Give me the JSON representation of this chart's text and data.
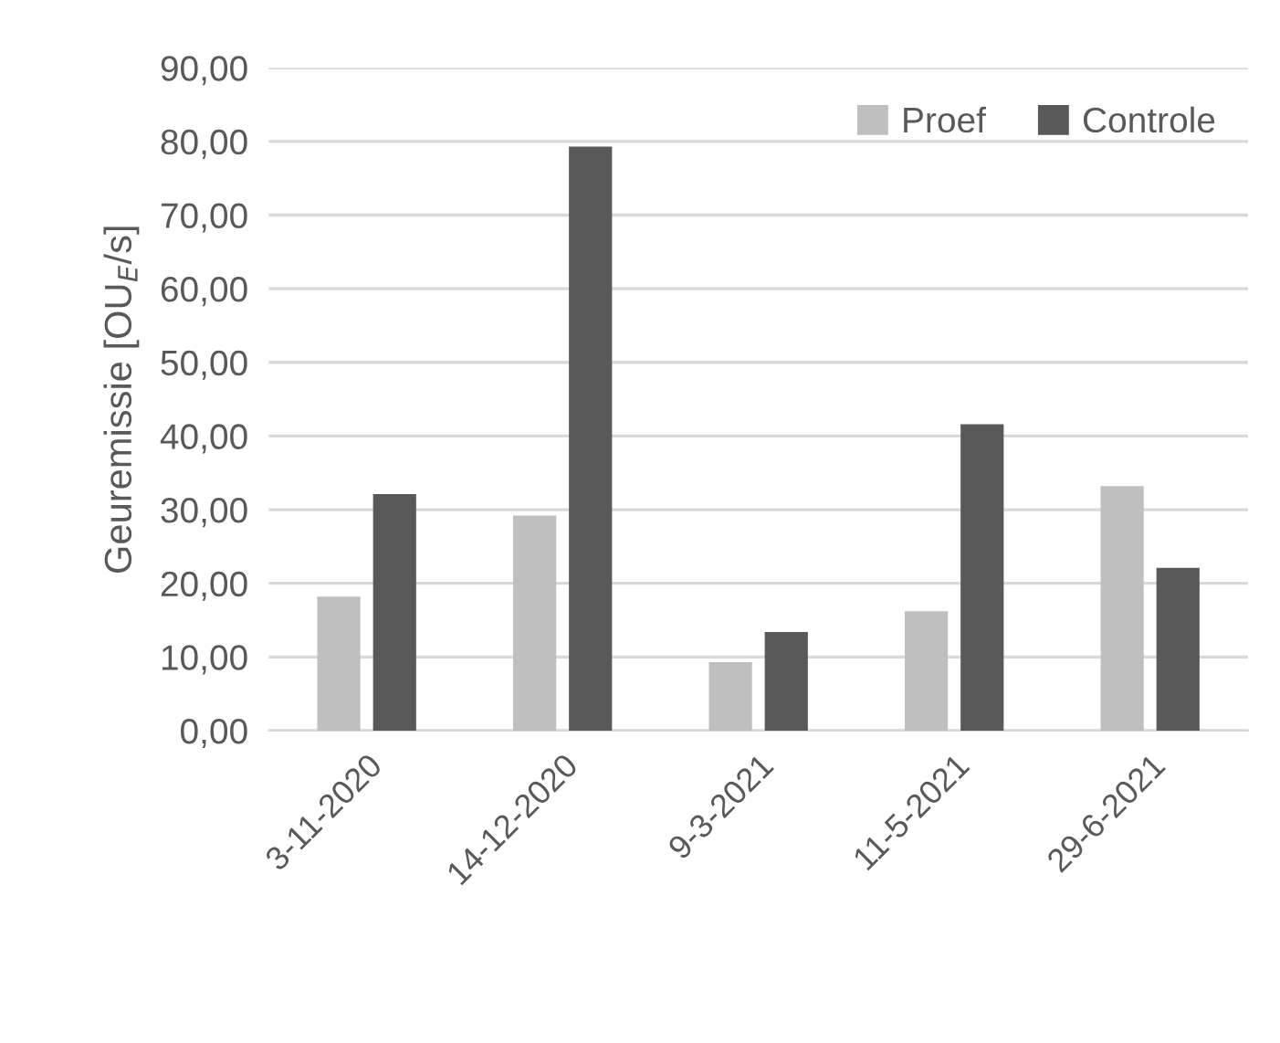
{
  "chart_data": {
    "type": "bar",
    "ylabel": "Geuremissie [OU$_{E}$/s]",
    "categories": [
      "3-11-2020",
      "14-12-2020",
      "9-3-2021",
      "11-5-2021",
      "29-6-2021"
    ],
    "series": [
      {
        "name": "Proef",
        "color": "#bfbfbf",
        "values": [
          18.2,
          29.2,
          9.3,
          16.2,
          33.2
        ]
      },
      {
        "name": "Controle",
        "color": "#595959",
        "values": [
          32.1,
          79.3,
          13.4,
          41.6,
          22.1
        ]
      }
    ],
    "ylim": [
      0,
      90
    ],
    "yticks": [
      {
        "value": 0,
        "label": "0,00"
      },
      {
        "value": 10,
        "label": "10,00"
      },
      {
        "value": 20,
        "label": "20,00"
      },
      {
        "value": 30,
        "label": "30,00"
      },
      {
        "value": 40,
        "label": "40,00"
      },
      {
        "value": 50,
        "label": "50,00"
      },
      {
        "value": 60,
        "label": "60,00"
      },
      {
        "value": 70,
        "label": "70,00"
      },
      {
        "value": 80,
        "label": "80,00"
      },
      {
        "value": 90,
        "label": "90,00"
      }
    ],
    "grid": "y",
    "legend": "top right"
  }
}
